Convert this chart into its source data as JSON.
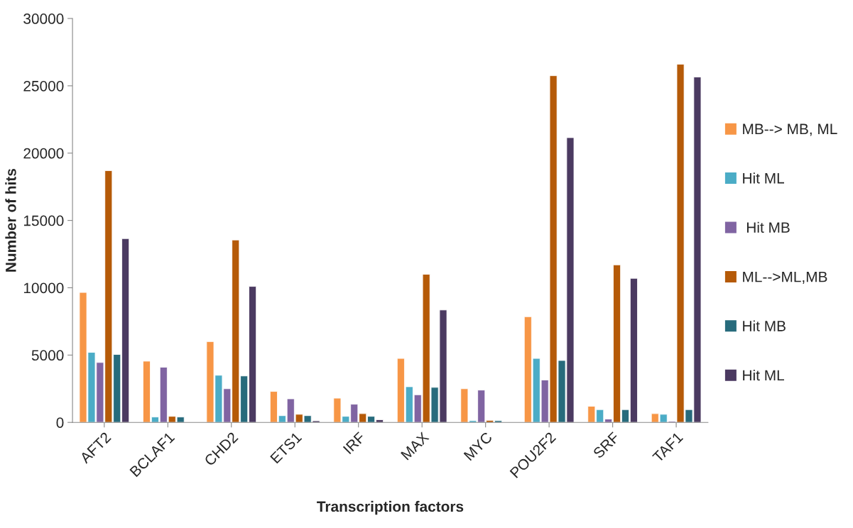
{
  "chart_data": {
    "type": "bar",
    "xlabel": "Transcription factors",
    "ylabel": "Number of hits",
    "categories": [
      "AFT2",
      "BCLAF1",
      "CHD2",
      "ETS1",
      "IRF",
      "MAX",
      "MYC",
      "POU2F2",
      "SRF",
      "TAF1"
    ],
    "series": [
      {
        "name": "MB--> MB, ML",
        "color": "#f79646",
        "values": [
          9650,
          4550,
          6000,
          2300,
          1800,
          4750,
          2500,
          7850,
          1200,
          650
        ]
      },
      {
        "name": "Hit ML",
        "color": "#4bacc6",
        "values": [
          5200,
          400,
          3500,
          500,
          450,
          2650,
          130,
          4750,
          950,
          600
        ]
      },
      {
        "name": " Hit MB",
        "color": "#8064a2",
        "values": [
          4450,
          4100,
          2500,
          1750,
          1350,
          2050,
          2400,
          3150,
          250,
          80
        ]
      },
      {
        "name": "ML-->ML,MB",
        "color": "#b55a08",
        "values": [
          18700,
          450,
          13550,
          600,
          650,
          11000,
          150,
          25750,
          11700,
          26600
        ]
      },
      {
        "name": "Hit MB",
        "color": "#276b7c",
        "values": [
          5050,
          400,
          3450,
          500,
          450,
          2600,
          130,
          4600,
          950,
          950
        ]
      },
      {
        "name": "Hit ML",
        "color": "#4b3a61",
        "values": [
          13650,
          null,
          10100,
          120,
          200,
          8350,
          null,
          21150,
          10700,
          25650
        ]
      }
    ],
    "ylim": [
      0,
      30000
    ],
    "yticks": [
      0,
      5000,
      10000,
      15000,
      20000,
      25000,
      30000
    ],
    "grid": false,
    "legend": "right"
  }
}
